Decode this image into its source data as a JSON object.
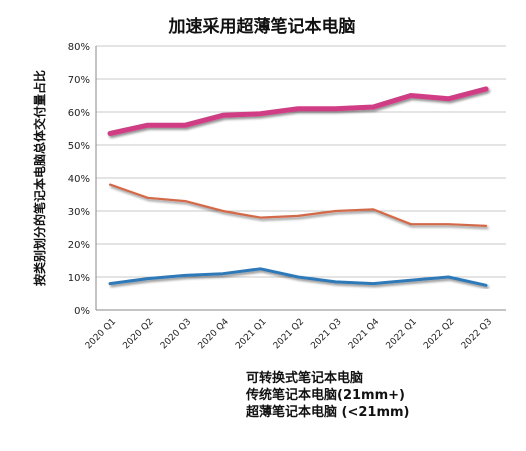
{
  "chart_data": {
    "type": "line",
    "title": "加速采用超薄笔记本电脑",
    "ylabel": "按类别划分的笔记本电脑总体交付量占比",
    "xlabel": "",
    "categories": [
      "2020 Q1",
      "2020 Q2",
      "2020 Q3",
      "2020 Q4",
      "2021 Q1",
      "2021 Q2",
      "2021 Q3",
      "2021 Q4",
      "2022 Q1",
      "2022 Q2",
      "2022 Q3"
    ],
    "yticks": [
      "0%",
      "10%",
      "20%",
      "30%",
      "40%",
      "50%",
      "60%",
      "70%",
      "80%"
    ],
    "ylim": [
      0,
      80
    ],
    "unit": "%",
    "grid": true,
    "legend_position": "bottom",
    "series": [
      {
        "name": "可转换式笔记本电脑",
        "color": "#2f79b7",
        "values": [
          8,
          9.5,
          10.5,
          11,
          12.5,
          10,
          8.5,
          8,
          9,
          10,
          7.5
        ]
      },
      {
        "name": "传统笔记本电脑(21mm+)",
        "color": "#d2694a",
        "values": [
          38,
          34,
          33,
          30,
          28,
          28.5,
          30,
          30.5,
          26,
          26,
          25.5
        ]
      },
      {
        "name": "超薄笔记本电脑 (<21mm)",
        "color": "#d13d84",
        "values": [
          53.5,
          56,
          56,
          59,
          59.5,
          61,
          61,
          61.5,
          65,
          64,
          67
        ]
      }
    ]
  }
}
